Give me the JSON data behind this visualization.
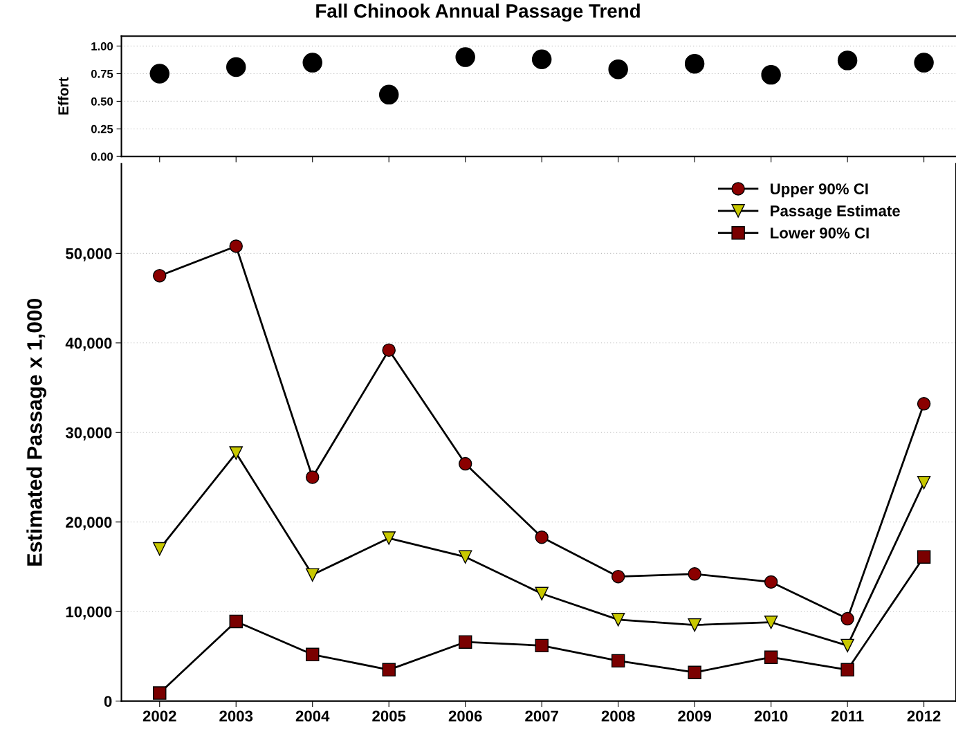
{
  "chart_data": [
    {
      "type": "scatter",
      "title": "Fall Chinook Annual Passage Trend",
      "ylabel": "Effort",
      "categories": [
        "2002",
        "2003",
        "2004",
        "2005",
        "2006",
        "2007",
        "2008",
        "2009",
        "2010",
        "2011",
        "2012"
      ],
      "series": [
        {
          "color": "#000000",
          "marker": "circle",
          "values": [
            0.75,
            0.81,
            0.85,
            0.56,
            0.9,
            0.88,
            0.79,
            0.84,
            0.74,
            0.87,
            0.85
          ]
        }
      ],
      "ylim": [
        0,
        1.09
      ],
      "yticks": [
        {
          "value": 0,
          "label": "0.00"
        },
        {
          "value": 0.25,
          "label": "0.25"
        },
        {
          "value": 0.5,
          "label": "0.50"
        },
        {
          "value": 0.75,
          "label": "0.75"
        },
        {
          "value": 1,
          "label": "1.00"
        }
      ],
      "grid": "y",
      "tick_labels": "y"
    },
    {
      "type": "line",
      "ylabel": "Estimated Passage x 1,000",
      "categories": [
        "2002",
        "2003",
        "2004",
        "2005",
        "2006",
        "2007",
        "2008",
        "2009",
        "2010",
        "2011",
        "2012"
      ],
      "series": [
        {
          "name": "Upper 90% CI",
          "color": "#8b0000",
          "marker": "circle",
          "values": [
            47500,
            50800,
            25000,
            39200,
            26500,
            18300,
            13900,
            14200,
            13300,
            9200,
            33200
          ]
        },
        {
          "name": "Passage Estimate",
          "color": "#c8c800",
          "marker": "triangle",
          "values": [
            17000,
            27700,
            14100,
            18200,
            16100,
            12000,
            9100,
            8500,
            8800,
            6200,
            24400
          ]
        },
        {
          "name": "Lower 90% CI",
          "color": "#7a0000",
          "marker": "square",
          "values": [
            900,
            8900,
            5200,
            3500,
            6600,
            6200,
            4500,
            3200,
            4900,
            3500,
            16100
          ]
        }
      ],
      "ylim": [
        0,
        60000
      ],
      "yticks": [
        0,
        {
          "value": 10000,
          "label": "10,000"
        },
        {
          "value": 20000,
          "label": "20,000"
        },
        {
          "value": 30000,
          "label": "30,000"
        },
        {
          "value": 40000,
          "label": "40,000"
        },
        {
          "value": 50000,
          "label": "50,000"
        }
      ],
      "grid": "y",
      "legend": "top right",
      "line_style": "solid"
    }
  ]
}
